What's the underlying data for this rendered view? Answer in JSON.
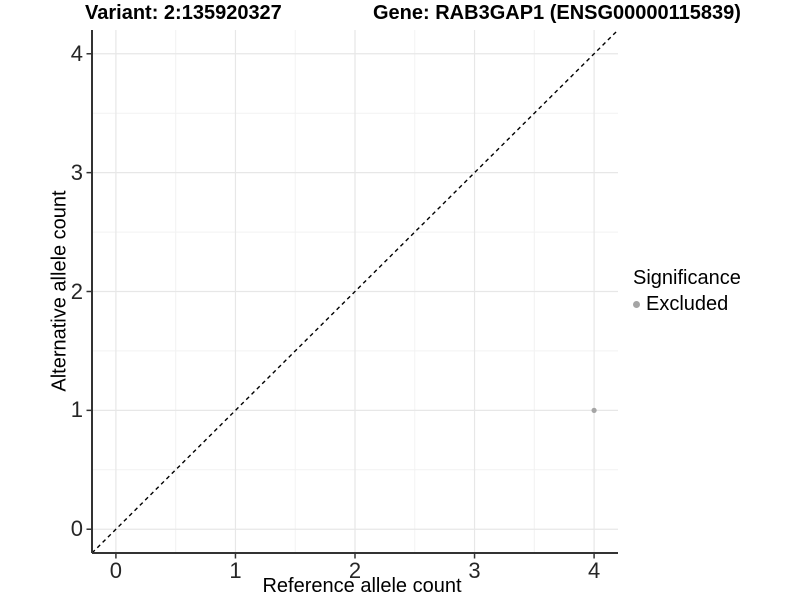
{
  "header": {
    "variant_title": "Variant: 2:135920327",
    "gene_title": "Gene: RAB3GAP1 (ENSG00000115839)"
  },
  "legend": {
    "title": "Significance",
    "items": [
      {
        "label": "Excluded",
        "color": "#a5a5a5"
      }
    ]
  },
  "chart_data": {
    "type": "scatter",
    "xlabel": "Reference allele count",
    "ylabel": "Alternative allele count",
    "xlim": [
      -0.2,
      4.2
    ],
    "ylim": [
      -0.2,
      4.2
    ],
    "x_ticks": [
      0,
      1,
      2,
      3,
      4
    ],
    "y_ticks": [
      0,
      1,
      2,
      3,
      4
    ],
    "grid": {
      "major": true,
      "minor": true,
      "minor_step": 0.5
    },
    "identity_line": {
      "shown": true,
      "style": "dashed",
      "equation": "y = x",
      "color": "#000000"
    },
    "series": [
      {
        "name": "Excluded",
        "color": "#a5a5a5",
        "points": [
          {
            "x": 4,
            "y": 1
          }
        ]
      }
    ]
  },
  "colors": {
    "grid_major": "#e7e7e7",
    "grid_minor": "#f2f2f2",
    "axis_line": "#333333",
    "tick_mark": "#333333",
    "tick_text": "#262626",
    "point": "#a5a5a5",
    "background": "#ffffff"
  }
}
